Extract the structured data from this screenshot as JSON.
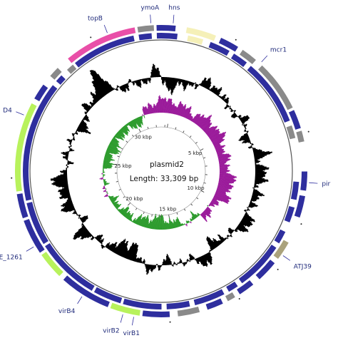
{
  "plasmid": {
    "name": "plasmid2",
    "length_label": "Length: 33,309 bp",
    "length_bp": 33309
  },
  "scale_ticks": [
    {
      "label": "5 kbp",
      "kbp": 5
    },
    {
      "label": "10 kbp",
      "kbp": 10
    },
    {
      "label": "15 kbp",
      "kbp": 15
    },
    {
      "label": "20 kbp",
      "kbp": 20
    },
    {
      "label": "25 kbp",
      "kbp": 25
    },
    {
      "label": "30 kbp",
      "kbp": 30
    }
  ],
  "gene_labels": [
    {
      "text": "topB",
      "pos_kbp": 30.6
    },
    {
      "text": "ymoA",
      "pos_kbp": 32.2
    },
    {
      "text": "hns",
      "pos_kbp": 33.0
    },
    {
      "text": "mcr1",
      "pos_kbp": 3.2
    },
    {
      "text": "pir",
      "pos_kbp": 8.0
    },
    {
      "text": "ATJ39",
      "pos_kbp": 10.8
    },
    {
      "text": "virB1",
      "pos_kbp": 16.9
    },
    {
      "text": "virB2",
      "pos_kbp": 17.3
    },
    {
      "text": "virB4",
      "pos_kbp": 18.9
    },
    {
      "text": "E_1261",
      "pos_kbp": 21.4
    },
    {
      "text": "D4",
      "pos_kbp": 26.3
    }
  ],
  "colors": {
    "cds": "#2e2e9e",
    "conjugation": "#b8f25c",
    "topoisomerase": "#e94fa8",
    "pale": "#f5f0b8",
    "grey_feature": "#8a8a8a",
    "transposase": "#aaa27c",
    "gc_content": "#000000",
    "gc_skew_positive": "#2a9a2a",
    "gc_skew_negative": "#9a1a9a",
    "backbone": "#555555"
  }
}
